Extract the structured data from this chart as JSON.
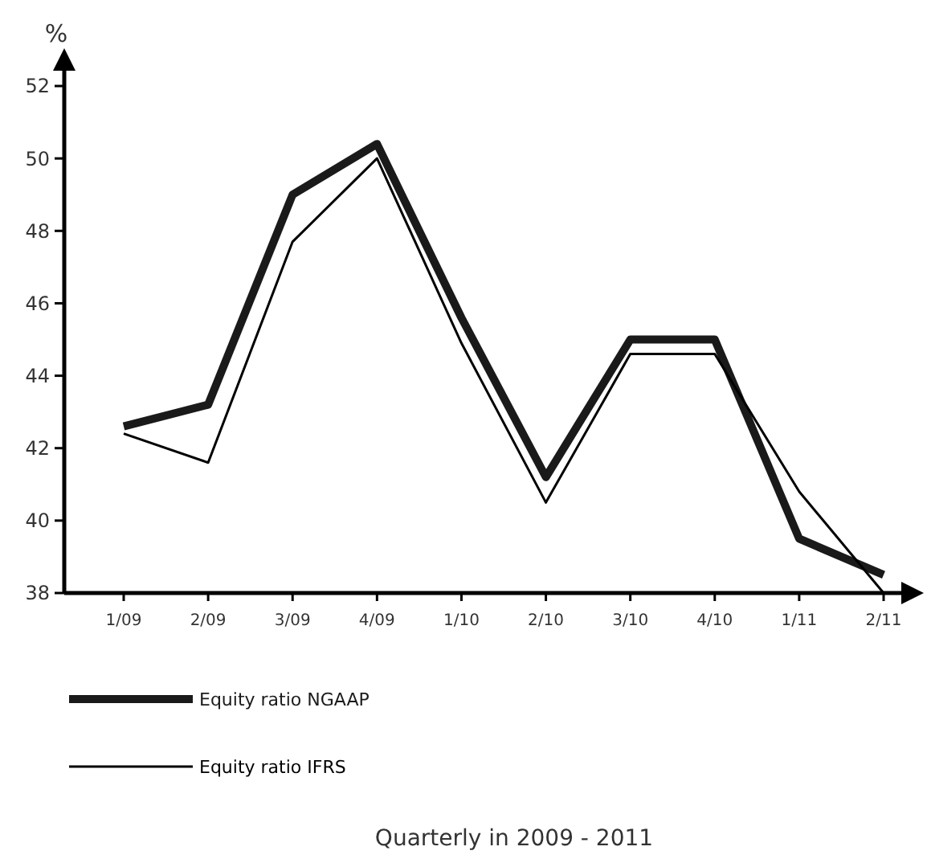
{
  "chart_data": {
    "type": "line",
    "ylabel": "%",
    "annotations": [
      "Quarterly in 2009 - 2011"
    ],
    "categories": [
      "1/09",
      "2/09",
      "3/09",
      "4/09",
      "1/10",
      "2/10",
      "3/10",
      "4/10",
      "1/11",
      "2/11"
    ],
    "series": [
      {
        "name": "Equity ratio NGAAP",
        "color": "#1a1a1a",
        "values": [
          42.6,
          43.2,
          49.0,
          50.4,
          45.6,
          41.2,
          45.0,
          45.0,
          39.5,
          38.5
        ]
      },
      {
        "name": "Equity ratio IFRS",
        "color": "#000000",
        "values": [
          42.4,
          41.6,
          47.7,
          50.0,
          44.9,
          40.5,
          44.6,
          44.6,
          40.8,
          38.0
        ]
      }
    ],
    "ylim": [
      38,
      52.6
    ],
    "yticks": [
      38,
      40,
      42,
      44,
      46,
      48,
      50,
      52
    ],
    "grid": false,
    "legend": "bottom",
    "marker": "none",
    "line_style": "solid"
  }
}
